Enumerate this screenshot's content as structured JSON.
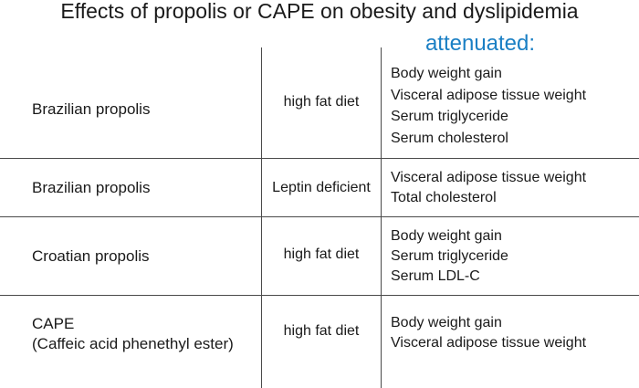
{
  "title": "Effects of propolis or CAPE on obesity and dyslipidemia",
  "header": {
    "effects_label": "attenuated:"
  },
  "rows": [
    {
      "agent": [
        "Brazilian propolis"
      ],
      "model": "high fat diet",
      "effects": [
        "Body weight gain",
        "Visceral adipose tissue weight",
        "Serum triglyceride",
        "Serum cholesterol"
      ]
    },
    {
      "agent": [
        "Brazilian propolis"
      ],
      "model": "Leptin deficient",
      "effects": [
        "Visceral adipose tissue weight",
        "Total cholesterol"
      ]
    },
    {
      "agent": [
        "Croatian propolis"
      ],
      "model": "high fat diet",
      "effects": [
        "Body weight gain",
        "Serum triglyceride",
        "Serum LDL-C"
      ]
    },
    {
      "agent": [
        "CAPE",
        "(Caffeic acid phenethyl ester)"
      ],
      "model": "high fat diet",
      "effects": [
        "Body weight gain",
        "Visceral adipose tissue weight"
      ]
    }
  ],
  "colors": {
    "text": "#1a1a1a",
    "accent": "#1a7fc4",
    "lines": "#4a4a4a"
  }
}
